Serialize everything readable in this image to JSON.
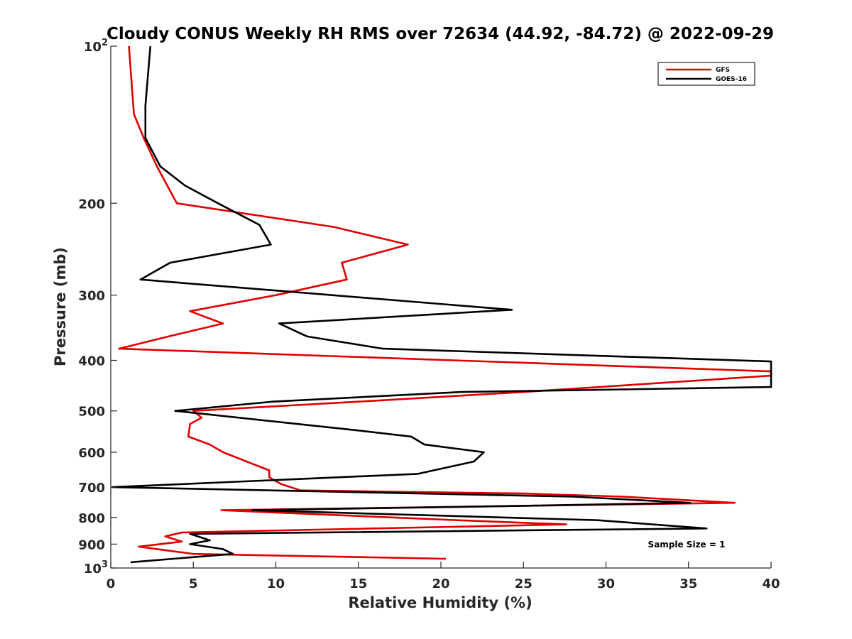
{
  "chart_data": {
    "type": "line",
    "title": "Cloudy CONUS Weekly RH RMS over 72634 (44.92, -84.72) @ 2022-09-29",
    "xlabel": "Relative Humidity (%)",
    "ylabel": "Pressure (mb)",
    "xlim": [
      0,
      40
    ],
    "ylim": [
      100,
      1000
    ],
    "yscale": "log",
    "y_reversed": true,
    "grid": false,
    "legend_position": "top-right",
    "x_ticks": [
      "0",
      "5",
      "10",
      "15",
      "20",
      "25",
      "30",
      "35",
      "40"
    ],
    "y_ticks": [
      {
        "value": 100,
        "label": "10",
        "sup": "2"
      },
      {
        "value": 200,
        "label": "200"
      },
      {
        "value": 300,
        "label": "300"
      },
      {
        "value": 400,
        "label": "400"
      },
      {
        "value": 500,
        "label": "500"
      },
      {
        "value": 600,
        "label": "600"
      },
      {
        "value": 700,
        "label": "700"
      },
      {
        "value": 800,
        "label": "800"
      },
      {
        "value": 900,
        "label": "900"
      },
      {
        "value": 1000,
        "label": "10",
        "sup": "3"
      }
    ],
    "annotation": "Sample Size = 1",
    "series": [
      {
        "name": "GFS",
        "color": "#e00000",
        "points": [
          [
            1.1,
            100
          ],
          [
            1.4,
            135
          ],
          [
            2.0,
            150
          ],
          [
            2.8,
            170
          ],
          [
            4.0,
            200
          ],
          [
            13.5,
            222
          ],
          [
            18.0,
            240
          ],
          [
            14.0,
            260
          ],
          [
            14.3,
            280
          ],
          [
            10.0,
            300
          ],
          [
            4.8,
            322
          ],
          [
            6.8,
            340
          ],
          [
            3.5,
            360
          ],
          [
            0.5,
            380
          ],
          [
            40,
            420
          ],
          [
            40,
            428
          ],
          [
            25.0,
            460
          ],
          [
            15.0,
            480
          ],
          [
            5.0,
            500
          ],
          [
            5.5,
            515
          ],
          [
            4.8,
            530
          ],
          [
            4.7,
            560
          ],
          [
            6.0,
            580
          ],
          [
            6.8,
            600
          ],
          [
            8.5,
            630
          ],
          [
            9.6,
            650
          ],
          [
            9.6,
            670
          ],
          [
            10.3,
            690
          ],
          [
            11.5,
            710
          ],
          [
            25.0,
            720
          ],
          [
            31.0,
            730
          ],
          [
            37.8,
            750
          ],
          [
            6.7,
            775
          ],
          [
            21.0,
            810
          ],
          [
            27.6,
            825
          ],
          [
            4.3,
            855
          ],
          [
            3.3,
            870
          ],
          [
            4.3,
            890
          ],
          [
            1.7,
            910
          ],
          [
            5.0,
            940
          ],
          [
            20.3,
            960
          ]
        ]
      },
      {
        "name": "GOES-16",
        "color": "#000000",
        "points": [
          [
            2.4,
            100
          ],
          [
            2.1,
            130
          ],
          [
            2.1,
            150
          ],
          [
            3.0,
            170
          ],
          [
            4.5,
            185
          ],
          [
            6.5,
            200
          ],
          [
            9.0,
            220
          ],
          [
            9.7,
            240
          ],
          [
            3.6,
            260
          ],
          [
            1.8,
            280
          ],
          [
            24.3,
            320
          ],
          [
            10.2,
            340
          ],
          [
            11.9,
            360
          ],
          [
            16.5,
            380
          ],
          [
            40,
            402
          ],
          [
            40,
            420
          ],
          [
            40,
            450
          ],
          [
            21.2,
            460
          ],
          [
            9.8,
            480
          ],
          [
            3.9,
            500
          ],
          [
            15.0,
            545
          ],
          [
            18.2,
            560
          ],
          [
            19.0,
            580
          ],
          [
            22.6,
            600
          ],
          [
            22.0,
            625
          ],
          [
            18.6,
            660
          ],
          [
            0.1,
            700
          ],
          [
            28.0,
            730
          ],
          [
            35.1,
            750
          ],
          [
            25.0,
            760
          ],
          [
            8.6,
            775
          ],
          [
            29.5,
            810
          ],
          [
            36.1,
            840
          ],
          [
            4.8,
            860
          ],
          [
            6.0,
            885
          ],
          [
            4.8,
            900
          ],
          [
            6.8,
            920
          ],
          [
            7.4,
            940
          ],
          [
            1.2,
            975
          ]
        ]
      }
    ]
  }
}
